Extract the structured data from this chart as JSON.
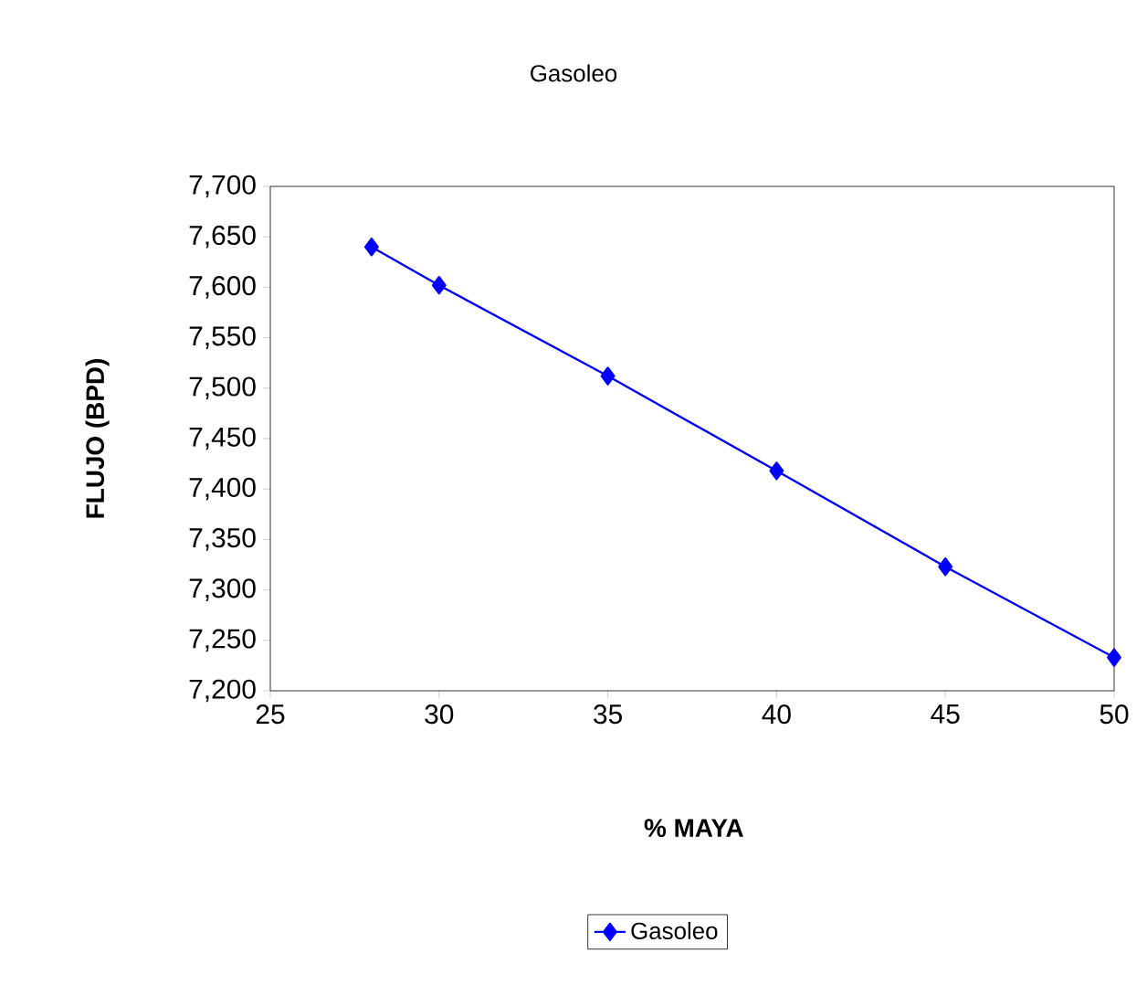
{
  "chart_data": {
    "type": "line",
    "title": "Gasoleo",
    "xlabel": "% MAYA",
    "ylabel": "FLUJO (BPD)",
    "x": [
      28,
      30,
      35,
      40,
      45,
      50
    ],
    "series": [
      {
        "name": "Gasoleo",
        "color": "#0000ff",
        "values": [
          7640,
          7602,
          7512,
          7418,
          7323,
          7233
        ]
      }
    ],
    "xlim": [
      25,
      50
    ],
    "xticks": [
      25,
      30,
      35,
      40,
      45,
      50
    ],
    "ylim": [
      7200,
      7700
    ],
    "yticks": [
      {
        "value": 7200,
        "label": "7,200"
      },
      {
        "value": 7250,
        "label": "7,250"
      },
      {
        "value": 7300,
        "label": "7,300"
      },
      {
        "value": 7350,
        "label": "7,350"
      },
      {
        "value": 7400,
        "label": "7,400"
      },
      {
        "value": 7450,
        "label": "7,450"
      },
      {
        "value": 7500,
        "label": "7,500"
      },
      {
        "value": 7550,
        "label": "7,550"
      },
      {
        "value": 7600,
        "label": "7,600"
      },
      {
        "value": 7650,
        "label": "7,650"
      },
      {
        "value": 7700,
        "label": "7,700"
      }
    ],
    "grid": false,
    "legend": "bottom",
    "marker": "diamond",
    "line_style": "solid"
  }
}
